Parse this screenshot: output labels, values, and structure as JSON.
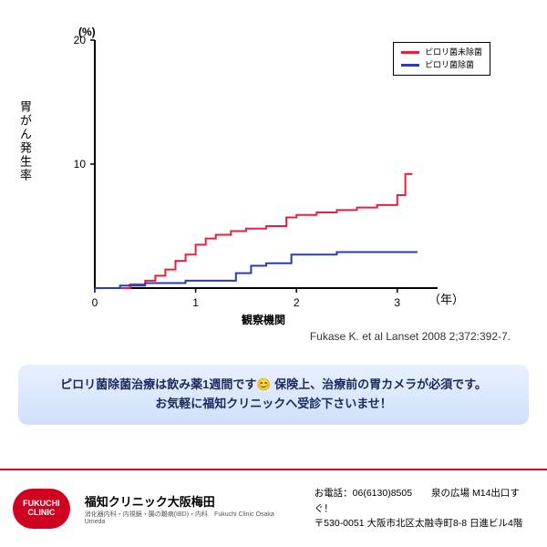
{
  "chart": {
    "type": "step-line",
    "y_axis_label": "胃がん発生率",
    "y_unit": "(%)",
    "x_axis_label": "観察機関",
    "x_unit": "（年）",
    "xlim": [
      0,
      3.4
    ],
    "ylim": [
      0,
      20
    ],
    "x_ticks": [
      0,
      1,
      2,
      3
    ],
    "y_ticks": [
      10,
      20
    ],
    "background_color": "#ffffff",
    "axis_color": "#000000",
    "axis_width": 2,
    "tick_fontsize": 12,
    "label_fontsize": 13,
    "legend": {
      "border_color": "#000000",
      "items": [
        {
          "label": "ピロリ菌未除菌",
          "color": "#e8203d"
        },
        {
          "label": "ピロリ菌除菌",
          "color": "#2a3db0"
        }
      ]
    },
    "series": [
      {
        "name": "untreated",
        "color": "#e8203d",
        "line_width": 2,
        "points": [
          [
            0,
            0
          ],
          [
            0.35,
            0
          ],
          [
            0.35,
            0.3
          ],
          [
            0.5,
            0.3
          ],
          [
            0.5,
            0.6
          ],
          [
            0.6,
            0.6
          ],
          [
            0.6,
            1.0
          ],
          [
            0.7,
            1.0
          ],
          [
            0.7,
            1.5
          ],
          [
            0.8,
            1.5
          ],
          [
            0.8,
            2.2
          ],
          [
            0.9,
            2.2
          ],
          [
            0.9,
            2.7
          ],
          [
            1.0,
            2.7
          ],
          [
            1.0,
            3.5
          ],
          [
            1.1,
            3.5
          ],
          [
            1.1,
            4.0
          ],
          [
            1.2,
            4.0
          ],
          [
            1.2,
            4.3
          ],
          [
            1.35,
            4.3
          ],
          [
            1.35,
            4.6
          ],
          [
            1.5,
            4.6
          ],
          [
            1.5,
            4.8
          ],
          [
            1.7,
            4.8
          ],
          [
            1.7,
            5.0
          ],
          [
            1.9,
            5.0
          ],
          [
            1.9,
            5.7
          ],
          [
            2.0,
            5.7
          ],
          [
            2.0,
            5.9
          ],
          [
            2.2,
            5.9
          ],
          [
            2.2,
            6.1
          ],
          [
            2.4,
            6.1
          ],
          [
            2.4,
            6.3
          ],
          [
            2.6,
            6.3
          ],
          [
            2.6,
            6.5
          ],
          [
            2.8,
            6.5
          ],
          [
            2.8,
            6.7
          ],
          [
            3.0,
            6.7
          ],
          [
            3.0,
            7.5
          ],
          [
            3.08,
            7.5
          ],
          [
            3.08,
            9.2
          ],
          [
            3.15,
            9.2
          ]
        ]
      },
      {
        "name": "treated",
        "color": "#2a3db0",
        "line_width": 2,
        "points": [
          [
            0,
            0
          ],
          [
            0.25,
            0
          ],
          [
            0.25,
            0.2
          ],
          [
            0.5,
            0.2
          ],
          [
            0.5,
            0.4
          ],
          [
            0.9,
            0.4
          ],
          [
            0.9,
            0.6
          ],
          [
            1.4,
            0.6
          ],
          [
            1.4,
            1.2
          ],
          [
            1.55,
            1.2
          ],
          [
            1.55,
            1.8
          ],
          [
            1.7,
            1.8
          ],
          [
            1.7,
            2.0
          ],
          [
            1.95,
            2.0
          ],
          [
            1.95,
            2.7
          ],
          [
            2.4,
            2.7
          ],
          [
            2.4,
            2.9
          ],
          [
            3.2,
            2.9
          ]
        ]
      }
    ]
  },
  "citation": "Fukase K. et al Lanset 2008 2;372:392-7.",
  "banner": {
    "line1_a": "ピロリ菌除菌治療は飲み薬1週間です",
    "emoji": "😊",
    "line1_b": " 保険上、治療前の胃カメラが必須です。",
    "line2": "お気軽に福知クリニックへ受診下さいませ！",
    "bg_top": "#e8f0ff",
    "bg_bottom": "#d0e0fa",
    "text_color": "#1a2a5a"
  },
  "footer": {
    "logo_text_1": "FUKUCHI",
    "logo_text_2": "CLINIC",
    "logo_bg": "#d00020",
    "clinic_name": "福知クリニック大阪梅田",
    "clinic_sub": "消化器内科・内視鏡・腸の難病(IBD)・内科　Fukuchi Clinic Osaka Umeda",
    "contact_line1": "お電話：06(6130)8505　　泉の広場 M14出口すぐ！",
    "contact_line2": "〒530-0051 大阪市北区太融寺町8-8 日進ビル4階",
    "border_color": "#d00020"
  }
}
